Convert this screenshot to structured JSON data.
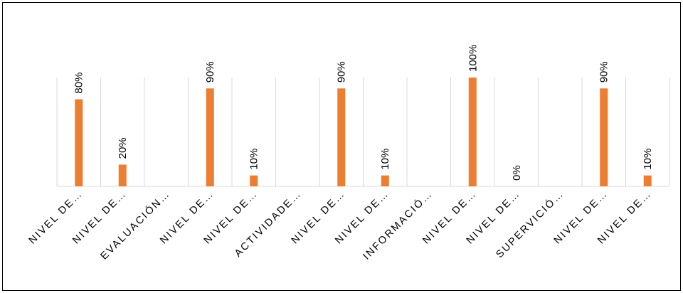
{
  "chart_data": {
    "type": "bar",
    "categories": [
      "NIVEL DE…",
      "NIVEL DE…",
      "EVALUACIÓN…",
      "NIVEL DE…",
      "NIVEL DE…",
      "ACTIVIDADE…",
      "NIVEL DE…",
      "NIVEL DE…",
      "INFORMACIÓ…",
      "NIVEL DE…",
      "NIVEL DE…",
      "SUPERVICIÓ…",
      "NIVEL DE…",
      "NIVEL DE…"
    ],
    "values": [
      80,
      20,
      null,
      90,
      10,
      null,
      90,
      10,
      null,
      100,
      0,
      null,
      90,
      10
    ],
    "value_labels": [
      "80%",
      "20%",
      "",
      "90%",
      "10%",
      "",
      "90%",
      "10%",
      "",
      "100%",
      "0%",
      "",
      "90%",
      "10%"
    ],
    "ylim": [
      0,
      100
    ],
    "bar_color": "#ED7D31",
    "grid": "vertical category separators",
    "legend": "none"
  }
}
